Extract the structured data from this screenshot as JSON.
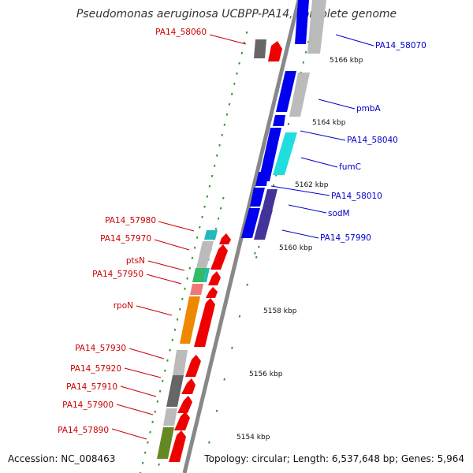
{
  "title": "Pseudomonas aeruginosa UCBPP-PA14, complete genome",
  "accession": "Accession: NC_008463",
  "topology": "Topology: circular; Length: 6,537,648 bp; Genes: 5,964",
  "colors": {
    "left_label": "#cc0000",
    "right_label": "#0000cc",
    "axis": "#888888",
    "tick": "#2a9a2a",
    "red": "#ee0000",
    "blue": "#0000ee",
    "grey": "#bbbbbb",
    "darkgrey": "#666666",
    "cyan": "#22dddd",
    "teal": "#22bbbb",
    "navy": "#443399",
    "green": "#33bb66",
    "pink": "#ee7777",
    "orange": "#ee8800",
    "olive": "#668822"
  },
  "kbp_marks": [
    "5166 kbp",
    "5164 kbp",
    "5162 kbp",
    "5160 kbp",
    "5158 kbp",
    "5156 kbp",
    "5154 kbp"
  ],
  "left_labels": [
    "PA14_58060",
    "PA14_57980",
    "PA14_57970",
    "ptsN",
    "PA14_57950",
    "rpoN",
    "PA14_57930",
    "PA14_57920",
    "PA14_57910",
    "PA14_57900",
    "PA14_57890"
  ],
  "right_labels": [
    "PA14_58070",
    "pmbA",
    "PA14_58040",
    "fumC",
    "PA14_58010",
    "sodM",
    "PA14_57990"
  ]
}
